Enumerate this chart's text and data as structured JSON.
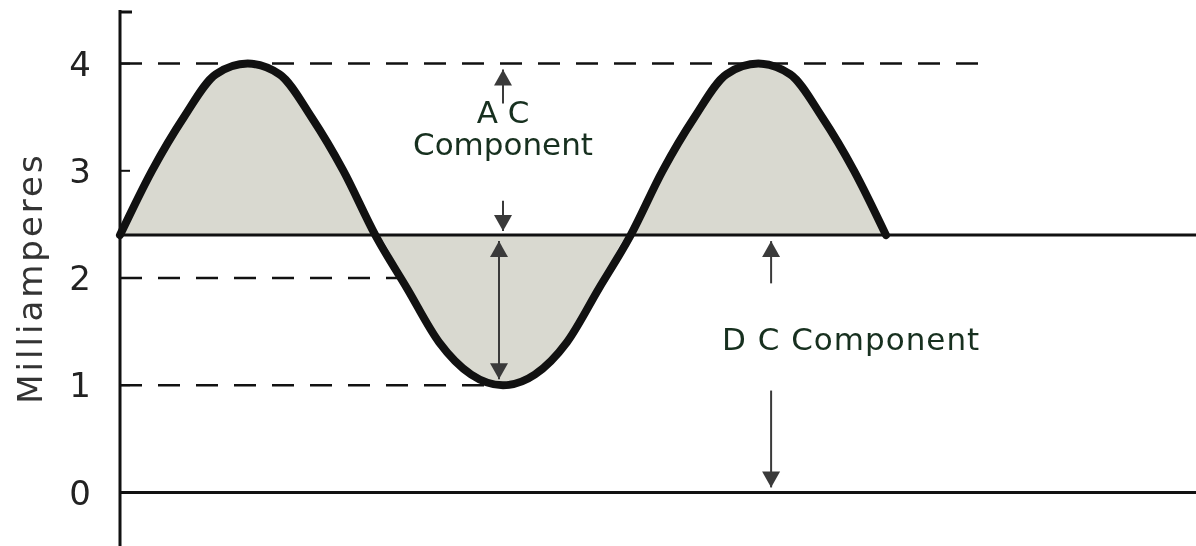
{
  "chart_data": {
    "type": "line",
    "ylabel": "Milliamperes",
    "categories": [
      null,
      null,
      null,
      null,
      null,
      null,
      null,
      null,
      null,
      null,
      null,
      null,
      null,
      null,
      null,
      null,
      null,
      null,
      null,
      null,
      null,
      null,
      null,
      null,
      null
    ],
    "series": [
      {
        "color": "#111111",
        "values": [
          2.4,
          3.0,
          3.5,
          3.9,
          4.0,
          3.9,
          3.5,
          3.0,
          2.4,
          1.9,
          1.4,
          1.1,
          1.0,
          1.1,
          1.4,
          1.9,
          2.4,
          3.0,
          3.5,
          3.9,
          4.0,
          3.9,
          3.5,
          3.0,
          2.4
        ],
        "lower": [
          2.4,
          2.4,
          2.4,
          2.4,
          2.4,
          2.4,
          2.4,
          2.4,
          2.4,
          1.9,
          1.4,
          1.1,
          1.0,
          1.1,
          1.4,
          1.9,
          2.4,
          2.4,
          2.4,
          2.4,
          2.4,
          2.4,
          2.4,
          2.4,
          2.4
        ],
        "upper": [
          2.4,
          3.0,
          3.5,
          3.9,
          4.0,
          3.9,
          3.5,
          3.0,
          2.4,
          2.4,
          2.4,
          2.4,
          2.4,
          2.4,
          2.4,
          2.4,
          2.4,
          3.0,
          3.5,
          3.9,
          4.0,
          3.9,
          3.5,
          3.0,
          2.4
        ]
      }
    ],
    "ylim": [
      -0.5,
      4.5
    ],
    "yticks": [
      0,
      1,
      2,
      3,
      4
    ],
    "ref_lines": [
      {
        "axis": "y",
        "value": 0,
        "line_style": "solid",
        "color": "#111111"
      },
      {
        "axis": "y",
        "value": 2.4,
        "line_style": "solid",
        "color": "#111111"
      },
      {
        "axis": "y",
        "value": 4,
        "line_style": "dashed",
        "color": "#111111"
      },
      {
        "axis": "y",
        "value": 2,
        "line_style": "dashed",
        "color": "#111111"
      },
      {
        "axis": "y",
        "value": 1,
        "line_style": "dashed",
        "color": "#111111"
      }
    ],
    "annotations": [
      "A C\nComponent",
      "D C Component"
    ],
    "tick_labels": "y"
  }
}
